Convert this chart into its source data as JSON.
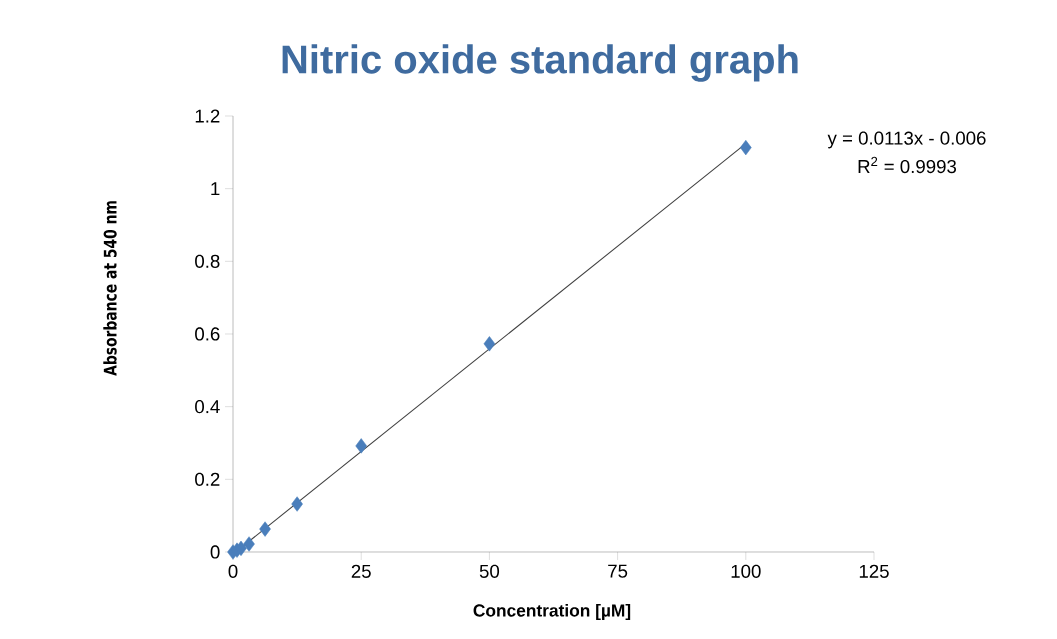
{
  "chart_data": {
    "type": "scatter",
    "title": "Nitric oxide standard graph",
    "xlabel": "Concentration [µM]",
    "ylabel": "Absorbance at 540 nm",
    "series": [
      {
        "color": "#4a7ebb",
        "marker": "diamond",
        "x": [
          0,
          0.78,
          1.56,
          3.125,
          6.25,
          12.5,
          25,
          50,
          100
        ],
        "values": [
          0,
          0.005,
          0.01,
          0.022,
          0.063,
          0.132,
          0.292,
          0.573,
          1.113
        ]
      },
      {
        "type": "line",
        "color": "#404040",
        "x": [
          0.53,
          100
        ],
        "values": [
          0,
          1.124
        ]
      }
    ],
    "annotations": [
      "y = 0.0113x - 0.006",
      "R$^{2}$ = 0.9993"
    ],
    "xlim": [
      0,
      125
    ],
    "ylim": [
      0,
      1.2
    ],
    "xticks": [
      0,
      25,
      50,
      75,
      100,
      125
    ],
    "yticks": [
      0,
      {
        "value": 0.2,
        "label": "0.2"
      },
      {
        "value": 0.4,
        "label": "0.4"
      },
      {
        "value": 0.6,
        "label": "0.6"
      },
      {
        "value": 0.8,
        "label": "0.8"
      },
      1,
      {
        "value": 1.2,
        "label": "1.2"
      }
    ],
    "grid": false
  }
}
